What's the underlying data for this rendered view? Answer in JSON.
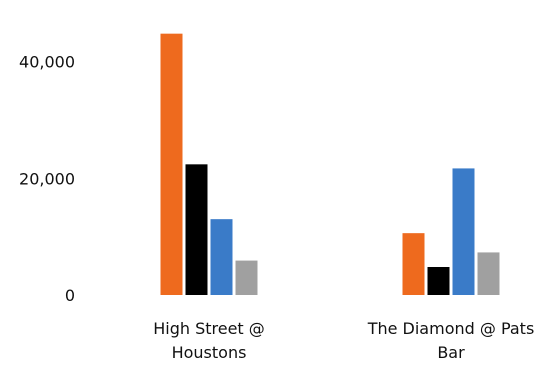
{
  "chart_data": {
    "type": "bar",
    "title": "",
    "xlabel": "",
    "ylabel": "",
    "categories": [
      [
        "High Street @",
        "Houstons"
      ],
      [
        "The Diamond @ Pats",
        "Bar"
      ]
    ],
    "series": [
      {
        "color": "#ee6a1e",
        "values": [
          44800,
          10600
        ]
      },
      {
        "color": "#000000",
        "values": [
          22400,
          4800
        ]
      },
      {
        "color": "#3a7bc8",
        "values": [
          13000,
          21700
        ]
      },
      {
        "color": "#a0a0a0",
        "values": [
          5900,
          7300
        ]
      }
    ],
    "yticks": [
      {
        "value": 0,
        "label": "0"
      },
      {
        "value": 20000,
        "label": "20,000"
      },
      {
        "value": 40000,
        "label": "40,000"
      }
    ],
    "ylim": [
      0,
      48000
    ],
    "grid": false,
    "legend": "none"
  }
}
